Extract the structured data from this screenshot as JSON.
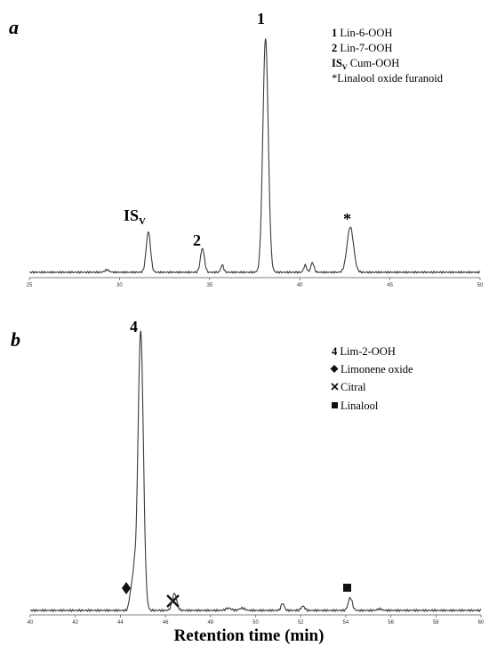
{
  "chart_data": [
    {
      "panel": "a",
      "type": "line",
      "x_ticks": [
        "25",
        "30",
        "35",
        "40",
        "45",
        "50"
      ],
      "xlim": [
        25,
        50
      ],
      "baseline_segments": [
        [
          25,
          29.0
        ],
        [
          29.6,
          31.3
        ],
        [
          32.0,
          34.3
        ],
        [
          35.0,
          35.6
        ],
        [
          35.9,
          37.6
        ],
        [
          38.7,
          40.1
        ],
        [
          41.0,
          42.3
        ],
        [
          43.6,
          50
        ]
      ],
      "peaks": [
        {
          "x": 29.3,
          "height": 0.01,
          "width": 0.12
        },
        {
          "x": 31.6,
          "height": 0.17,
          "width": 0.12,
          "label": "ISV"
        },
        {
          "x": 34.6,
          "height": 0.1,
          "width": 0.11,
          "label": "2"
        },
        {
          "x": 35.7,
          "height": 0.03,
          "width": 0.08
        },
        {
          "x": 38.1,
          "height": 0.98,
          "width": 0.15,
          "label": "1"
        },
        {
          "x": 40.3,
          "height": 0.03,
          "width": 0.08
        },
        {
          "x": 40.7,
          "height": 0.04,
          "width": 0.09
        },
        {
          "x": 42.8,
          "height": 0.19,
          "width": 0.18,
          "label": "*"
        }
      ],
      "legend": [
        {
          "key": "1",
          "text": "Lin-6-OOH"
        },
        {
          "key": "2",
          "text": "Lin-7-OOH"
        },
        {
          "key": "IS",
          "sub": "V",
          "text": "Cum-OOH"
        },
        {
          "key": "",
          "text": "*Linalool oxide furanoid"
        }
      ]
    },
    {
      "panel": "b",
      "type": "line",
      "x_ticks": [
        "40",
        "42",
        "44",
        "46",
        "48",
        "50",
        "52",
        "54",
        "56",
        "58",
        "60"
      ],
      "xlim": [
        40,
        60
      ],
      "xlabel": "Retention time (min)",
      "peaks": [
        {
          "x": 44.45,
          "height": 0.05,
          "width": 0.07,
          "label": "diamond"
        },
        {
          "x": 44.6,
          "height": 0.12,
          "width": 0.08
        },
        {
          "x": 44.9,
          "height": 0.99,
          "width": 0.12,
          "label": "4"
        },
        {
          "x": 46.4,
          "height": 0.06,
          "width": 0.1,
          "label": "cross"
        },
        {
          "x": 48.8,
          "height": 0.008,
          "width": 0.12
        },
        {
          "x": 49.4,
          "height": 0.008,
          "width": 0.12
        },
        {
          "x": 51.2,
          "height": 0.025,
          "width": 0.07
        },
        {
          "x": 52.1,
          "height": 0.015,
          "width": 0.08
        },
        {
          "x": 54.2,
          "height": 0.045,
          "width": 0.09,
          "label": "square"
        },
        {
          "x": 55.5,
          "height": 0.005,
          "width": 0.1
        }
      ],
      "legend": [
        {
          "key": "4",
          "text": "Lim-2-OOH"
        },
        {
          "key": "diamond",
          "text": "Limonene oxide"
        },
        {
          "key": "cross",
          "text": "Citral"
        },
        {
          "key": "square",
          "text": "Linalool"
        }
      ]
    }
  ],
  "labels": {
    "panel_a": "a",
    "panel_b": "b",
    "peak_1": "1",
    "peak_2": "2",
    "peak_isv_main": "IS",
    "peak_isv_sub": "V",
    "peak_star": "*",
    "peak_4": "4",
    "xlabel": "Retention time (min)"
  },
  "colors": {
    "trace": "#3a3a3a",
    "text": "#111111"
  },
  "icons": {
    "diamond": "black-diamond-icon",
    "cross": "x-cross-icon",
    "square": "black-square-icon"
  }
}
